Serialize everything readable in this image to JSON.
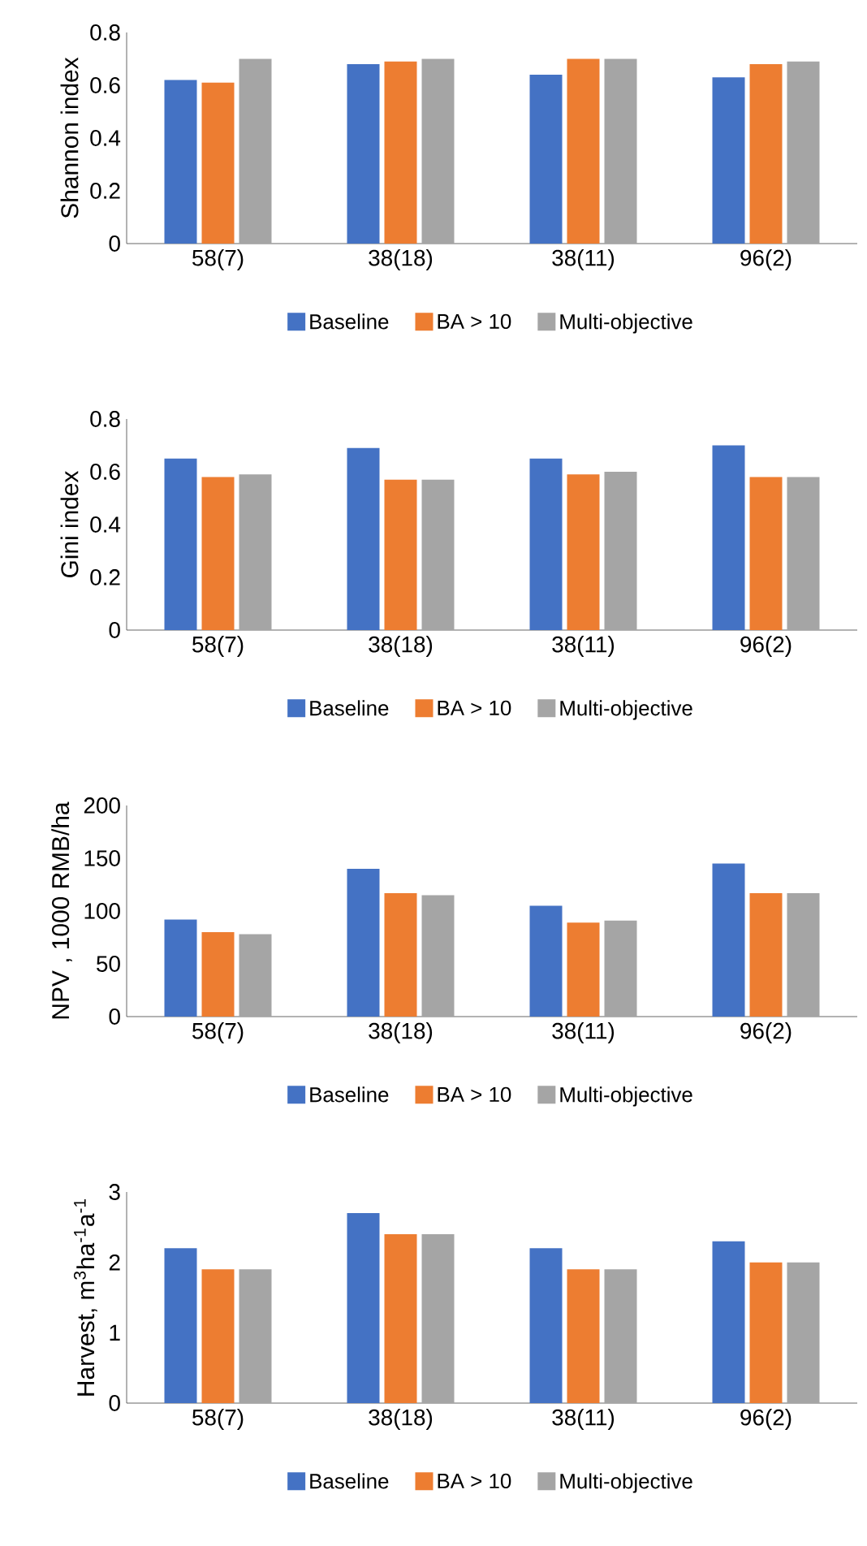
{
  "chart_data": [
    {
      "type": "bar",
      "ylabel": "Shannon index",
      "categories": [
        "58(7)",
        "38(18)",
        "38(11)",
        "96(2)"
      ],
      "ylim": [
        0,
        0.8
      ],
      "yticks": [
        0,
        0.2,
        0.4,
        0.6,
        0.8
      ],
      "legend": "bottom",
      "series": [
        {
          "name": "Baseline",
          "color": "#4472c4",
          "values": [
            0.62,
            0.68,
            0.64,
            0.63
          ]
        },
        {
          "name": "BA > 10",
          "color": "#ed7d31",
          "values": [
            0.61,
            0.69,
            0.7,
            0.68
          ]
        },
        {
          "name": "Multi-objective",
          "color": "#a5a5a5",
          "values": [
            0.7,
            0.7,
            0.7,
            0.69
          ]
        }
      ]
    },
    {
      "type": "bar",
      "ylabel": "Gini index",
      "categories": [
        "58(7)",
        "38(18)",
        "38(11)",
        "96(2)"
      ],
      "ylim": [
        0,
        0.8
      ],
      "yticks": [
        0,
        0.2,
        0.4,
        0.6,
        0.8
      ],
      "legend": "bottom",
      "series": [
        {
          "name": "Baseline",
          "color": "#4472c4",
          "values": [
            0.65,
            0.69,
            0.65,
            0.7
          ]
        },
        {
          "name": "BA > 10",
          "color": "#ed7d31",
          "values": [
            0.58,
            0.57,
            0.59,
            0.58
          ]
        },
        {
          "name": "Multi-objective",
          "color": "#a5a5a5",
          "values": [
            0.59,
            0.57,
            0.6,
            0.58
          ]
        }
      ]
    },
    {
      "type": "bar",
      "ylabel": "NPV , 1000 RMB/ha",
      "categories": [
        "58(7)",
        "38(18)",
        "38(11)",
        "96(2)"
      ],
      "ylim": [
        0,
        200
      ],
      "yticks": [
        0,
        50,
        100,
        150,
        200
      ],
      "legend": "bottom",
      "series": [
        {
          "name": "Baseline",
          "color": "#4472c4",
          "values": [
            92,
            140,
            105,
            145
          ]
        },
        {
          "name": "BA > 10",
          "color": "#ed7d31",
          "values": [
            80,
            117,
            89,
            117
          ]
        },
        {
          "name": "Multi-objective",
          "color": "#a5a5a5",
          "values": [
            78,
            115,
            91,
            117
          ]
        }
      ]
    },
    {
      "type": "bar",
      "ylabel": "Harvest, m$^{3}$ha$^{-1}$a$^{-1}$",
      "categories": [
        "58(7)",
        "38(18)",
        "38(11)",
        "96(2)"
      ],
      "ylim": [
        0,
        3
      ],
      "yticks": [
        0,
        1,
        2,
        3
      ],
      "legend": "bottom",
      "series": [
        {
          "name": "Baseline",
          "color": "#4472c4",
          "values": [
            2.2,
            2.7,
            2.2,
            2.3
          ]
        },
        {
          "name": "BA > 10",
          "color": "#ed7d31",
          "values": [
            1.9,
            2.4,
            1.9,
            2.0
          ]
        },
        {
          "name": "Multi-objective",
          "color": "#a5a5a5",
          "values": [
            1.9,
            2.4,
            1.9,
            2.0
          ]
        }
      ]
    }
  ]
}
